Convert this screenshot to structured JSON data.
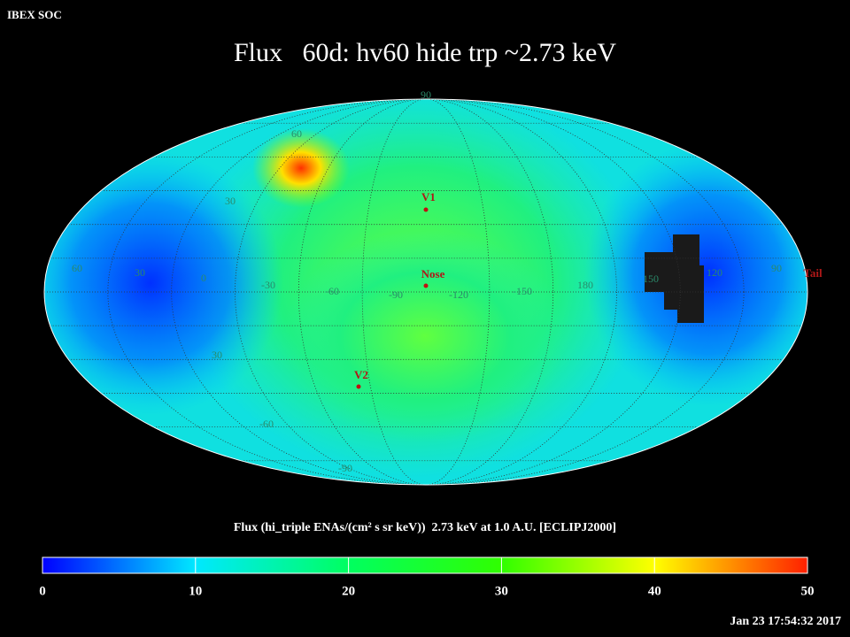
{
  "header": {
    "corner": "IBEX SOC",
    "title": "Flux   60d: hv60 hide trp ~2.73 keV"
  },
  "map": {
    "grid_labels": [
      "90",
      "60",
      "30",
      "60",
      "30",
      "0",
      "-30",
      "-60",
      "-90",
      "-120",
      "-150",
      "180",
      "150",
      "120",
      "90",
      "30",
      "-60",
      "-90"
    ],
    "markers": [
      "V1",
      "Nose",
      "V2",
      "Tail"
    ]
  },
  "colorbar": {
    "label": "Flux (hi_triple ENAs/(cm² s sr keV))  2.73 keV at 1.0 A.U. [ECLIPJ2000]",
    "range": [
      0,
      50
    ],
    "ticks": [
      0,
      10,
      20,
      30,
      40,
      50
    ],
    "colors": [
      "#0000ff",
      "#00e8ff",
      "#00ff60",
      "#30ff00",
      "#ffff00",
      "#ff2000"
    ]
  },
  "timestamp": "Jan 23 17:54:32 2017"
}
